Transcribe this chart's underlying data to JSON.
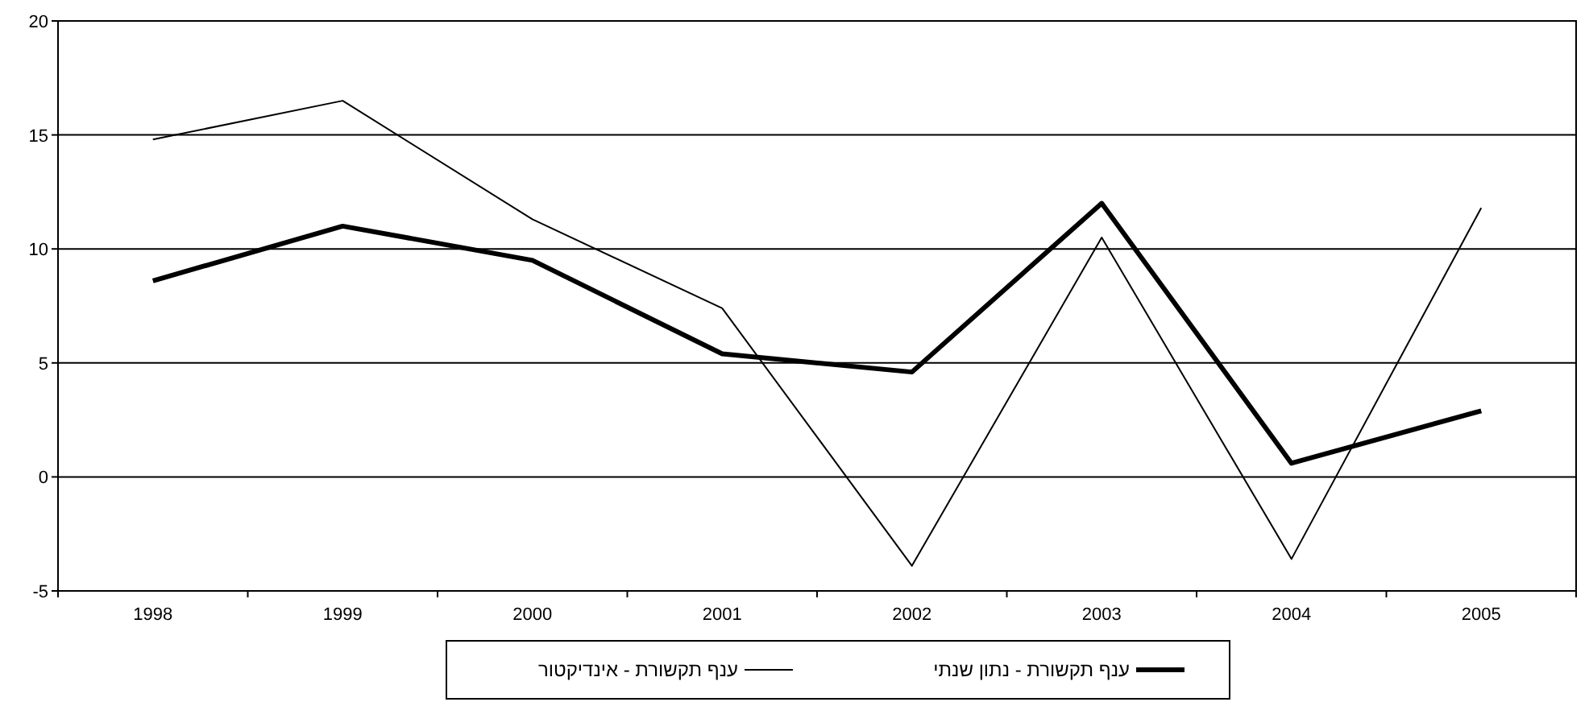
{
  "chart_data": {
    "type": "line",
    "categories": [
      "1998",
      "1999",
      "2000",
      "2001",
      "2002",
      "2003",
      "2004",
      "2005"
    ],
    "series": [
      {
        "name": "ענף תקשורת - אינדיקטור",
        "color": "#000000",
        "values": [
          14.8,
          16.5,
          11.3,
          7.4,
          -3.9,
          10.5,
          -3.6,
          11.8
        ]
      },
      {
        "name": "ענף תקשורת - נתון שנתי",
        "color": "#000000",
        "values": [
          8.6,
          11.0,
          9.5,
          5.4,
          4.6,
          12.0,
          0.6,
          2.9
        ]
      }
    ],
    "ylim": [
      -5,
      20
    ],
    "yticks": [
      -5,
      0,
      5,
      10,
      15,
      20
    ],
    "grid": "y",
    "legend": "bottom",
    "marker": "none",
    "line_style": "solid"
  }
}
